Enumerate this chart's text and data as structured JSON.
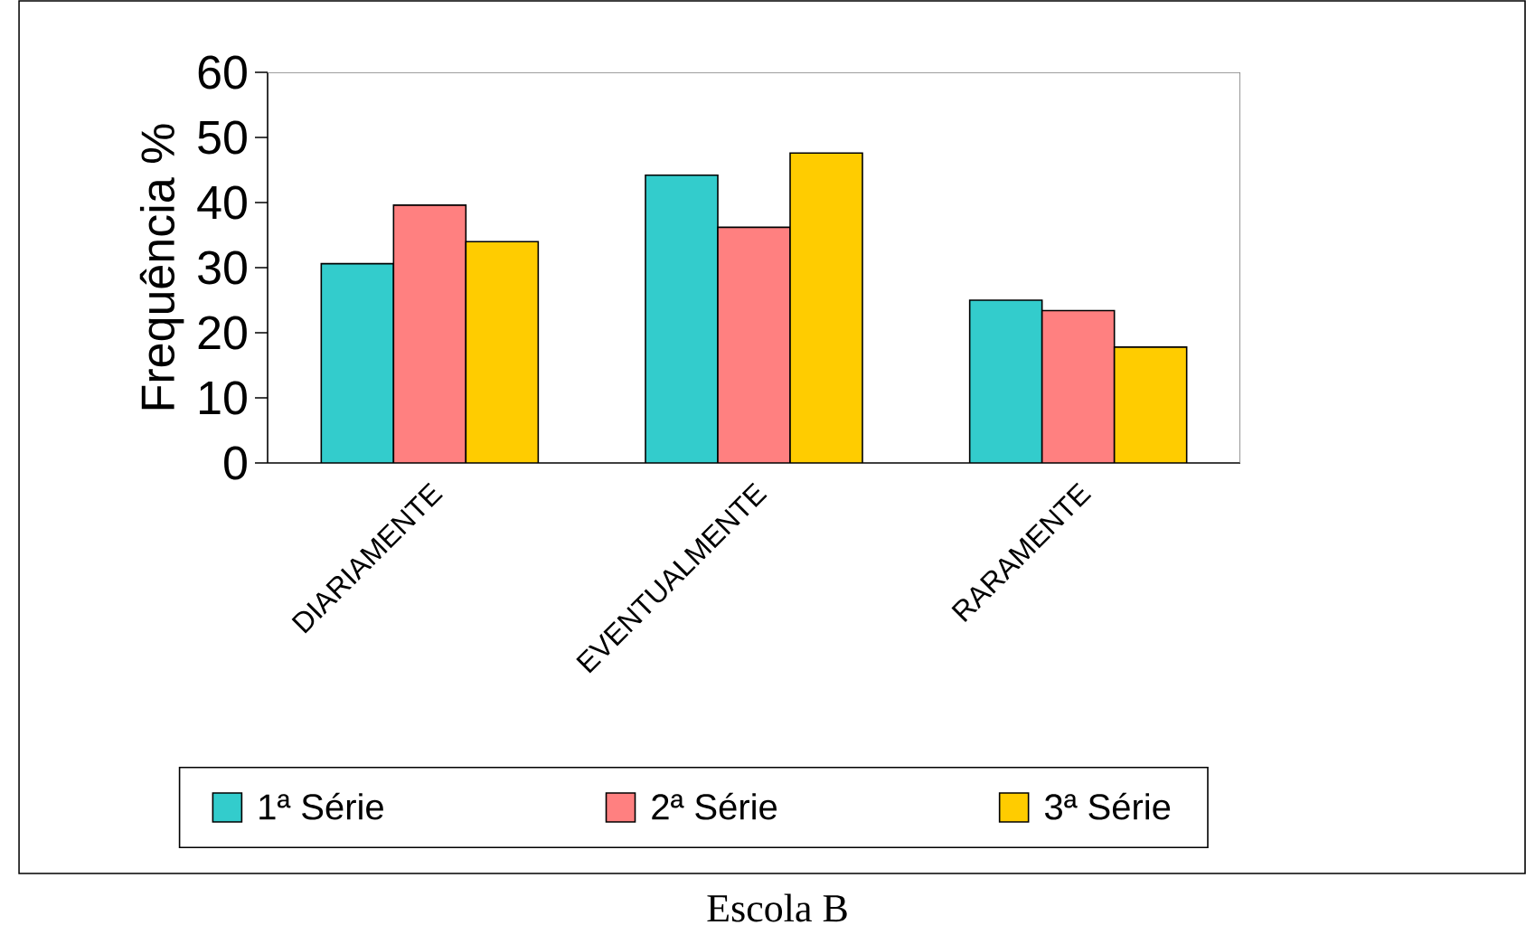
{
  "chart_data": {
    "type": "bar",
    "title": "Escola B",
    "ylabel": "Frequência %",
    "categories": [
      "DIARIAMENTE",
      "EVENTUALMENTE",
      "RARAMENTE"
    ],
    "series": [
      {
        "name": "1ª Série",
        "color": "#33cccc",
        "values": [
          30.6,
          44.2,
          25.0
        ]
      },
      {
        "name": "2ª Série",
        "color": "#ff8080",
        "values": [
          39.6,
          36.2,
          23.4
        ]
      },
      {
        "name": "3ª Série",
        "color": "#ffcc00",
        "values": [
          34.0,
          47.6,
          17.8
        ]
      }
    ],
    "ylim": [
      0,
      60
    ],
    "yticks": [
      0,
      10,
      20,
      30,
      40,
      50,
      60
    ],
    "grid": false,
    "legend": "bottom"
  }
}
